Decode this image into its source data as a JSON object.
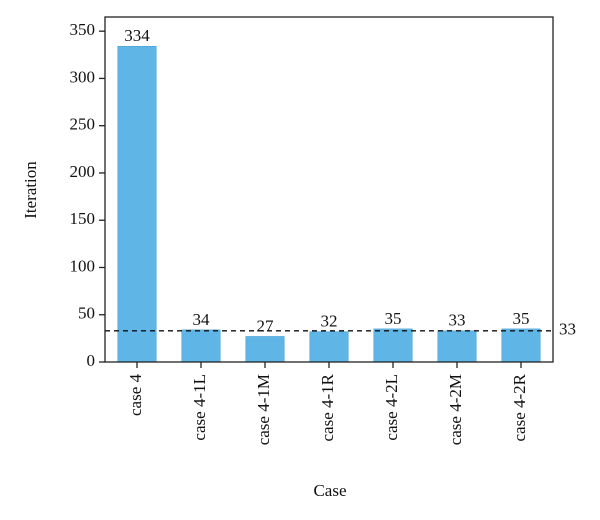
{
  "chart_data": {
    "type": "bar",
    "x_label": "Case",
    "y_label": "Iteration",
    "categories": [
      "case 4",
      "case 4-1L",
      "case 4-1M",
      "case 4-1R",
      "case 4-2L",
      "case 4-2M",
      "case 4-2R"
    ],
    "values": [
      334,
      34,
      27,
      32,
      35,
      33,
      35
    ],
    "color": "#5fb6e6",
    "ylim": [
      0,
      365
    ],
    "yticks": [
      0,
      50,
      100,
      150,
      200,
      250,
      300,
      350
    ],
    "reference_line": 33
  }
}
